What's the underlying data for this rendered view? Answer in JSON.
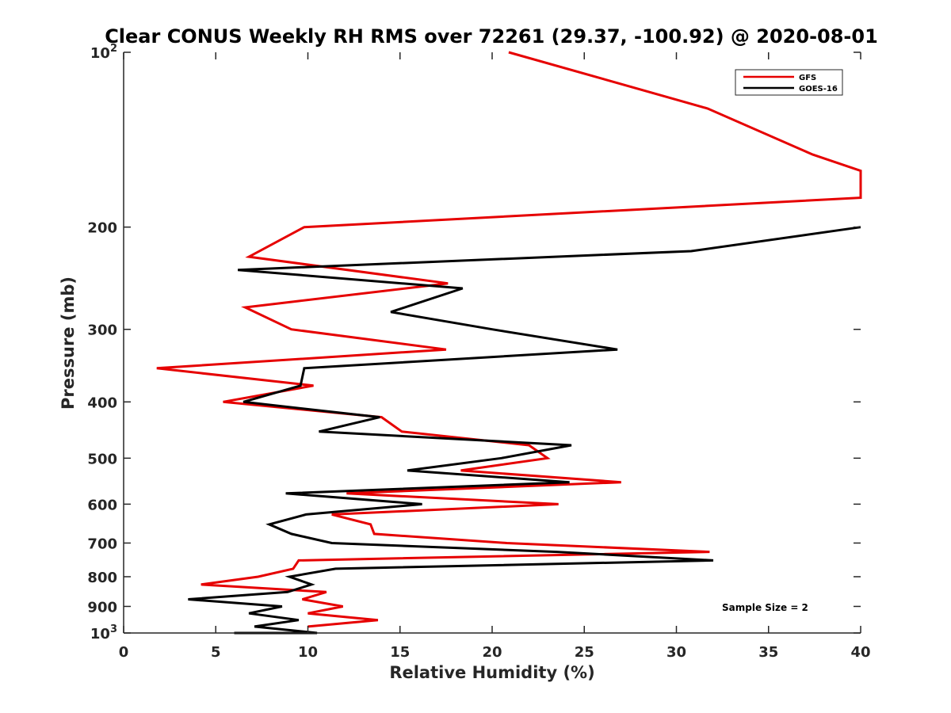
{
  "chart_data": {
    "type": "line",
    "title": "Clear CONUS Weekly RH RMS over 72261 (29.37, -100.92) @ 2020-08-01",
    "xlabel": "Relative Humidity (%)",
    "ylabel": "Pressure (mb)",
    "xlim": [
      0,
      40
    ],
    "ylim": [
      100,
      1000
    ],
    "y_scale": "log",
    "y_reversed": true,
    "grid": false,
    "legend_position": "top-right",
    "x_ticks": [
      "0",
      "5",
      "10",
      "15",
      "20",
      "25",
      "30",
      "35",
      "40"
    ],
    "x_tick_values": [
      0,
      5,
      10,
      15,
      20,
      25,
      30,
      35,
      40
    ],
    "y_ticks": [
      {
        "value": 100,
        "base": "10",
        "exp": "2"
      },
      {
        "value": 200,
        "label": "200"
      },
      {
        "value": 300,
        "label": "300"
      },
      {
        "value": 400,
        "label": "400"
      },
      {
        "value": 500,
        "label": "500"
      },
      {
        "value": 600,
        "label": "600"
      },
      {
        "value": 700,
        "label": "700"
      },
      {
        "value": 800,
        "label": "800"
      },
      {
        "value": 900,
        "label": "900"
      },
      {
        "value": 1000,
        "base": "10",
        "exp": "3"
      }
    ],
    "series": [
      {
        "name": "GFS",
        "color": "#e60000",
        "points": [
          [
            20.9,
            100
          ],
          [
            31.7,
            125
          ],
          [
            37.4,
            150
          ],
          [
            40,
            160
          ],
          [
            40,
            178
          ],
          [
            9.8,
            200
          ],
          [
            6.8,
            225
          ],
          [
            17.6,
            250
          ],
          [
            6.6,
            275
          ],
          [
            9.1,
            300
          ],
          [
            17.5,
            325
          ],
          [
            1.8,
            350
          ],
          [
            10.3,
            375
          ],
          [
            5.4,
            400
          ],
          [
            14.0,
            425
          ],
          [
            15.1,
            450
          ],
          [
            22.0,
            475
          ],
          [
            23.0,
            500
          ],
          [
            18.3,
            525
          ],
          [
            27.0,
            550
          ],
          [
            12.1,
            575
          ],
          [
            23.6,
            600
          ],
          [
            11.3,
            625
          ],
          [
            13.4,
            650
          ],
          [
            13.6,
            675
          ],
          [
            20.8,
            700
          ],
          [
            31.8,
            725
          ],
          [
            9.5,
            750
          ],
          [
            9.2,
            775
          ],
          [
            7.3,
            800
          ],
          [
            4.2,
            825
          ],
          [
            11.0,
            850
          ],
          [
            9.7,
            875
          ],
          [
            11.9,
            900
          ],
          [
            10.0,
            925
          ],
          [
            13.8,
            950
          ],
          [
            10.0,
            975
          ]
        ]
      },
      {
        "name": "GOES-16",
        "color": "#000000",
        "points": [
          [
            40,
            200
          ],
          [
            30.8,
            220
          ],
          [
            6.2,
            237
          ],
          [
            18.4,
            255
          ],
          [
            14.5,
            280
          ],
          [
            20.0,
            300
          ],
          [
            26.8,
            325
          ],
          [
            9.8,
            350
          ],
          [
            9.6,
            375
          ],
          [
            6.5,
            400
          ],
          [
            13.9,
            425
          ],
          [
            10.6,
            450
          ],
          [
            24.3,
            475
          ],
          [
            20.5,
            500
          ],
          [
            15.4,
            525
          ],
          [
            24.2,
            550
          ],
          [
            8.8,
            575
          ],
          [
            16.2,
            600
          ],
          [
            9.9,
            625
          ],
          [
            7.9,
            650
          ],
          [
            9.1,
            675
          ],
          [
            11.3,
            700
          ],
          [
            23.5,
            725
          ],
          [
            32.0,
            750
          ],
          [
            11.5,
            775
          ],
          [
            9.0,
            800
          ],
          [
            10.2,
            825
          ],
          [
            8.9,
            850
          ],
          [
            3.5,
            875
          ],
          [
            8.6,
            900
          ],
          [
            6.8,
            925
          ],
          [
            9.5,
            950
          ],
          [
            7.1,
            975
          ],
          [
            10.5,
            1000
          ],
          [
            6.0,
            1000
          ]
        ]
      }
    ],
    "annotations": [
      "Sample Size = 2"
    ]
  }
}
